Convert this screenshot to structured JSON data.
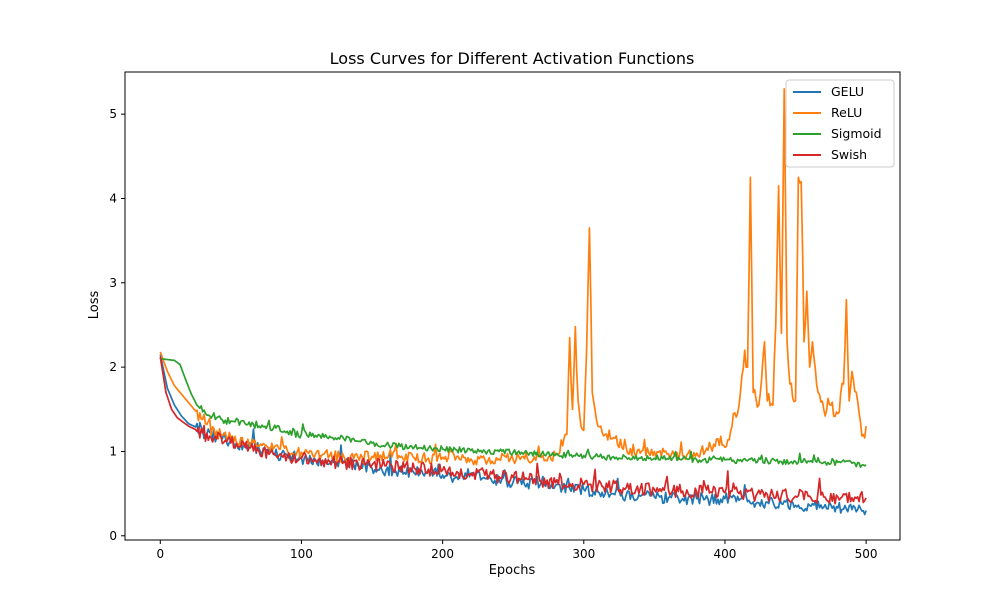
{
  "chart_data": {
    "type": "line",
    "title": "Loss Curves for Different Activation Functions",
    "xlabel": "Epochs",
    "ylabel": "Loss",
    "xlim": [
      -25,
      524
    ],
    "ylim": [
      -0.05,
      5.5
    ],
    "xticks": [
      0,
      100,
      200,
      300,
      400,
      500
    ],
    "yticks": [
      0,
      1,
      2,
      3,
      4,
      5
    ],
    "grid": false,
    "legend_position": "top-right",
    "series": [
      {
        "name": "GELU",
        "color": "#1f77b4",
        "points": [
          [
            0,
            2.15
          ],
          [
            5,
            1.75
          ],
          [
            10,
            1.55
          ],
          [
            15,
            1.42
          ],
          [
            20,
            1.33
          ],
          [
            30,
            1.25
          ],
          [
            40,
            1.17
          ],
          [
            50,
            1.12
          ],
          [
            60,
            1.07
          ],
          [
            70,
            1.03
          ],
          [
            80,
            0.97
          ],
          [
            90,
            0.95
          ],
          [
            100,
            0.92
          ],
          [
            110,
            0.9
          ],
          [
            120,
            0.86
          ],
          [
            130,
            0.88
          ],
          [
            140,
            0.83
          ],
          [
            150,
            0.8
          ],
          [
            160,
            0.78
          ],
          [
            170,
            0.76
          ],
          [
            180,
            0.74
          ],
          [
            190,
            0.78
          ],
          [
            200,
            0.72
          ],
          [
            210,
            0.7
          ],
          [
            220,
            0.74
          ],
          [
            230,
            0.68
          ],
          [
            240,
            0.66
          ],
          [
            250,
            0.64
          ],
          [
            260,
            0.62
          ],
          [
            270,
            0.64
          ],
          [
            280,
            0.6
          ],
          [
            290,
            0.56
          ],
          [
            300,
            0.55
          ],
          [
            310,
            0.52
          ],
          [
            320,
            0.5
          ],
          [
            330,
            0.48
          ],
          [
            340,
            0.47
          ],
          [
            350,
            0.46
          ],
          [
            360,
            0.45
          ],
          [
            370,
            0.44
          ],
          [
            380,
            0.44
          ],
          [
            390,
            0.43
          ],
          [
            400,
            0.44
          ],
          [
            410,
            0.42
          ],
          [
            420,
            0.4
          ],
          [
            430,
            0.4
          ],
          [
            440,
            0.38
          ],
          [
            450,
            0.36
          ],
          [
            460,
            0.36
          ],
          [
            470,
            0.34
          ],
          [
            480,
            0.33
          ],
          [
            490,
            0.31
          ],
          [
            500,
            0.3
          ]
        ],
        "noise": 0.07
      },
      {
        "name": "ReLU",
        "color": "#ff7f0e",
        "points": [
          [
            0,
            2.18
          ],
          [
            5,
            1.95
          ],
          [
            10,
            1.78
          ],
          [
            15,
            1.68
          ],
          [
            20,
            1.58
          ],
          [
            30,
            1.38
          ],
          [
            40,
            1.24
          ],
          [
            50,
            1.16
          ],
          [
            60,
            1.1
          ],
          [
            70,
            1.06
          ],
          [
            80,
            1.03
          ],
          [
            90,
            1.01
          ],
          [
            100,
            0.99
          ],
          [
            110,
            0.97
          ],
          [
            120,
            0.95
          ],
          [
            130,
            0.94
          ],
          [
            140,
            0.93
          ],
          [
            150,
            0.94
          ],
          [
            160,
            0.93
          ],
          [
            170,
            0.93
          ],
          [
            180,
            0.92
          ],
          [
            190,
            0.92
          ],
          [
            200,
            0.93
          ],
          [
            210,
            0.94
          ],
          [
            220,
            0.91
          ],
          [
            230,
            0.9
          ],
          [
            240,
            0.91
          ],
          [
            250,
            0.9
          ],
          [
            260,
            0.92
          ],
          [
            270,
            0.93
          ],
          [
            280,
            0.96
          ],
          [
            288,
            1.2
          ],
          [
            290,
            2.35
          ],
          [
            292,
            1.5
          ],
          [
            294,
            2.48
          ],
          [
            296,
            1.6
          ],
          [
            298,
            1.3
          ],
          [
            300,
            1.25
          ],
          [
            302,
            2.2
          ],
          [
            304,
            3.65
          ],
          [
            306,
            1.7
          ],
          [
            310,
            1.3
          ],
          [
            315,
            1.2
          ],
          [
            320,
            1.15
          ],
          [
            330,
            1.05
          ],
          [
            340,
            0.98
          ],
          [
            350,
            1.0
          ],
          [
            360,
            0.97
          ],
          [
            370,
            0.95
          ],
          [
            380,
            0.98
          ],
          [
            390,
            1.05
          ],
          [
            395,
            1.15
          ],
          [
            400,
            1.05
          ],
          [
            405,
            1.3
          ],
          [
            410,
            1.55
          ],
          [
            414,
            2.2
          ],
          [
            416,
            2.0
          ],
          [
            418,
            4.25
          ],
          [
            420,
            1.7
          ],
          [
            424,
            1.55
          ],
          [
            428,
            2.3
          ],
          [
            430,
            1.6
          ],
          [
            434,
            1.55
          ],
          [
            436,
            2.5
          ],
          [
            438,
            4.15
          ],
          [
            440,
            2.4
          ],
          [
            442,
            5.3
          ],
          [
            444,
            2.3
          ],
          [
            446,
            1.8
          ],
          [
            450,
            1.6
          ],
          [
            452,
            4.25
          ],
          [
            454,
            4.2
          ],
          [
            456,
            2.3
          ],
          [
            458,
            2.9
          ],
          [
            460,
            2.0
          ],
          [
            462,
            2.3
          ],
          [
            466,
            1.7
          ],
          [
            470,
            1.5
          ],
          [
            475,
            1.55
          ],
          [
            480,
            1.45
          ],
          [
            484,
            1.8
          ],
          [
            486,
            2.8
          ],
          [
            488,
            1.6
          ],
          [
            490,
            1.95
          ],
          [
            494,
            1.6
          ],
          [
            496,
            1.35
          ],
          [
            498,
            1.2
          ],
          [
            500,
            1.3
          ]
        ],
        "noise": 0.07
      },
      {
        "name": "Sigmoid",
        "color": "#2ca02c",
        "points": [
          [
            0,
            2.1
          ],
          [
            5,
            2.09
          ],
          [
            10,
            2.08
          ],
          [
            14,
            2.03
          ],
          [
            18,
            1.85
          ],
          [
            22,
            1.68
          ],
          [
            26,
            1.55
          ],
          [
            30,
            1.47
          ],
          [
            40,
            1.4
          ],
          [
            50,
            1.36
          ],
          [
            60,
            1.33
          ],
          [
            70,
            1.3
          ],
          [
            80,
            1.27
          ],
          [
            90,
            1.24
          ],
          [
            100,
            1.21
          ],
          [
            110,
            1.19
          ],
          [
            120,
            1.18
          ],
          [
            130,
            1.15
          ],
          [
            140,
            1.12
          ],
          [
            150,
            1.1
          ],
          [
            160,
            1.08
          ],
          [
            170,
            1.06
          ],
          [
            180,
            1.05
          ],
          [
            190,
            1.04
          ],
          [
            200,
            1.03
          ],
          [
            210,
            1.02
          ],
          [
            220,
            1.01
          ],
          [
            230,
            1.0
          ],
          [
            240,
            1.0
          ],
          [
            250,
            0.99
          ],
          [
            260,
            0.98
          ],
          [
            270,
            0.97
          ],
          [
            280,
            0.96
          ],
          [
            290,
            0.95
          ],
          [
            300,
            0.95
          ],
          [
            310,
            0.94
          ],
          [
            320,
            0.93
          ],
          [
            330,
            0.93
          ],
          [
            340,
            0.92
          ],
          [
            350,
            0.92
          ],
          [
            360,
            0.91
          ],
          [
            370,
            0.91
          ],
          [
            380,
            0.9
          ],
          [
            390,
            0.9
          ],
          [
            400,
            0.9
          ],
          [
            410,
            0.89
          ],
          [
            420,
            0.89
          ],
          [
            430,
            0.89
          ],
          [
            440,
            0.88
          ],
          [
            450,
            0.88
          ],
          [
            460,
            0.88
          ],
          [
            470,
            0.87
          ],
          [
            480,
            0.87
          ],
          [
            490,
            0.86
          ],
          [
            500,
            0.84
          ]
        ],
        "noise": 0.035
      },
      {
        "name": "Swish",
        "color": "#d62728",
        "points": [
          [
            0,
            2.12
          ],
          [
            4,
            1.7
          ],
          [
            8,
            1.5
          ],
          [
            12,
            1.4
          ],
          [
            16,
            1.35
          ],
          [
            20,
            1.3
          ],
          [
            30,
            1.22
          ],
          [
            40,
            1.15
          ],
          [
            50,
            1.1
          ],
          [
            60,
            1.05
          ],
          [
            70,
            1.0
          ],
          [
            80,
            0.97
          ],
          [
            90,
            0.95
          ],
          [
            100,
            0.92
          ],
          [
            110,
            0.9
          ],
          [
            120,
            0.88
          ],
          [
            130,
            0.87
          ],
          [
            140,
            0.86
          ],
          [
            150,
            0.84
          ],
          [
            160,
            0.83
          ],
          [
            170,
            0.82
          ],
          [
            180,
            0.8
          ],
          [
            190,
            0.79
          ],
          [
            200,
            0.78
          ],
          [
            210,
            0.76
          ],
          [
            220,
            0.74
          ],
          [
            230,
            0.72
          ],
          [
            240,
            0.7
          ],
          [
            250,
            0.69
          ],
          [
            260,
            0.67
          ],
          [
            270,
            0.65
          ],
          [
            280,
            0.63
          ],
          [
            290,
            0.62
          ],
          [
            300,
            0.61
          ],
          [
            310,
            0.6
          ],
          [
            320,
            0.58
          ],
          [
            330,
            0.57
          ],
          [
            340,
            0.56
          ],
          [
            350,
            0.55
          ],
          [
            360,
            0.54
          ],
          [
            370,
            0.53
          ],
          [
            380,
            0.52
          ],
          [
            390,
            0.52
          ],
          [
            400,
            0.51
          ],
          [
            410,
            0.5
          ],
          [
            420,
            0.49
          ],
          [
            430,
            0.49
          ],
          [
            440,
            0.48
          ],
          [
            450,
            0.47
          ],
          [
            460,
            0.47
          ],
          [
            470,
            0.46
          ],
          [
            480,
            0.46
          ],
          [
            490,
            0.45
          ],
          [
            500,
            0.45
          ]
        ],
        "noise": 0.08
      }
    ]
  }
}
